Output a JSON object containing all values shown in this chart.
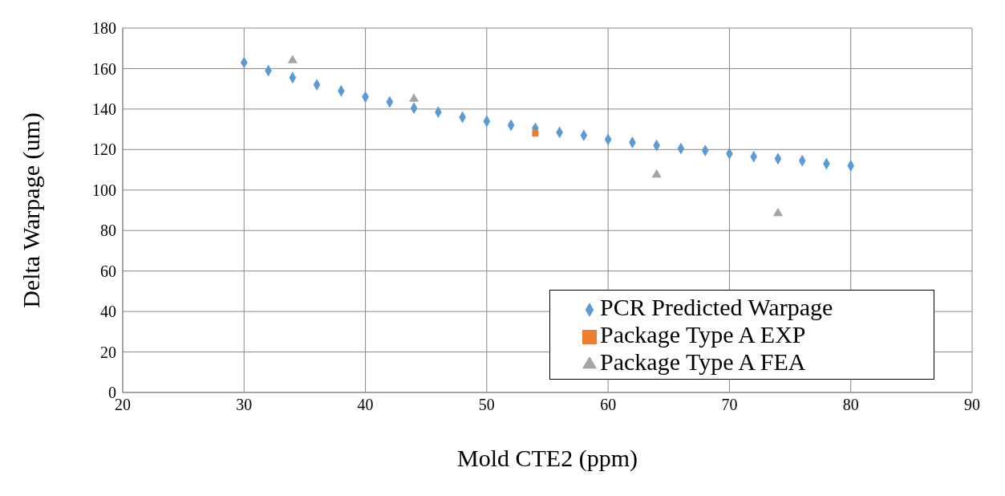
{
  "chart_data": {
    "type": "scatter",
    "xlabel": "Mold CTE2 (ppm)",
    "ylabel": "Delta Warpage (um)",
    "xlim": [
      20,
      90
    ],
    "xticks": [
      20,
      30,
      40,
      50,
      60,
      70,
      80,
      90
    ],
    "ylim": [
      0,
      180
    ],
    "yticks": [
      0,
      20,
      40,
      60,
      80,
      100,
      120,
      140,
      160,
      180
    ],
    "grid": true,
    "legend": "bottom right",
    "series": [
      {
        "name": "PCR Predicted Warpage",
        "color": "#5b9bd5",
        "marker": "diamond",
        "x": [
          30,
          32,
          34,
          36,
          38,
          40,
          42,
          44,
          46,
          48,
          50,
          52,
          54,
          56,
          58,
          60,
          62,
          64,
          66,
          68,
          70,
          72,
          74,
          76,
          78,
          80
        ],
        "values": [
          163,
          159,
          155.5,
          152,
          149,
          146,
          143.5,
          140.5,
          138.5,
          136,
          134,
          132,
          130.5,
          128.5,
          127,
          125,
          123.5,
          122,
          120.5,
          119.5,
          118,
          116.5,
          115.5,
          114.5,
          113,
          112
        ]
      },
      {
        "name": "Package Type A EXP",
        "color": "#ed7d31",
        "marker": "square",
        "x": [
          54
        ],
        "values": [
          128
        ]
      },
      {
        "name": "Package Type A FEA",
        "color": "#a5a5a5",
        "marker": "triangle",
        "x": [
          34,
          44,
          64,
          74
        ],
        "values": [
          164,
          145,
          107.5,
          88.5
        ]
      }
    ]
  }
}
